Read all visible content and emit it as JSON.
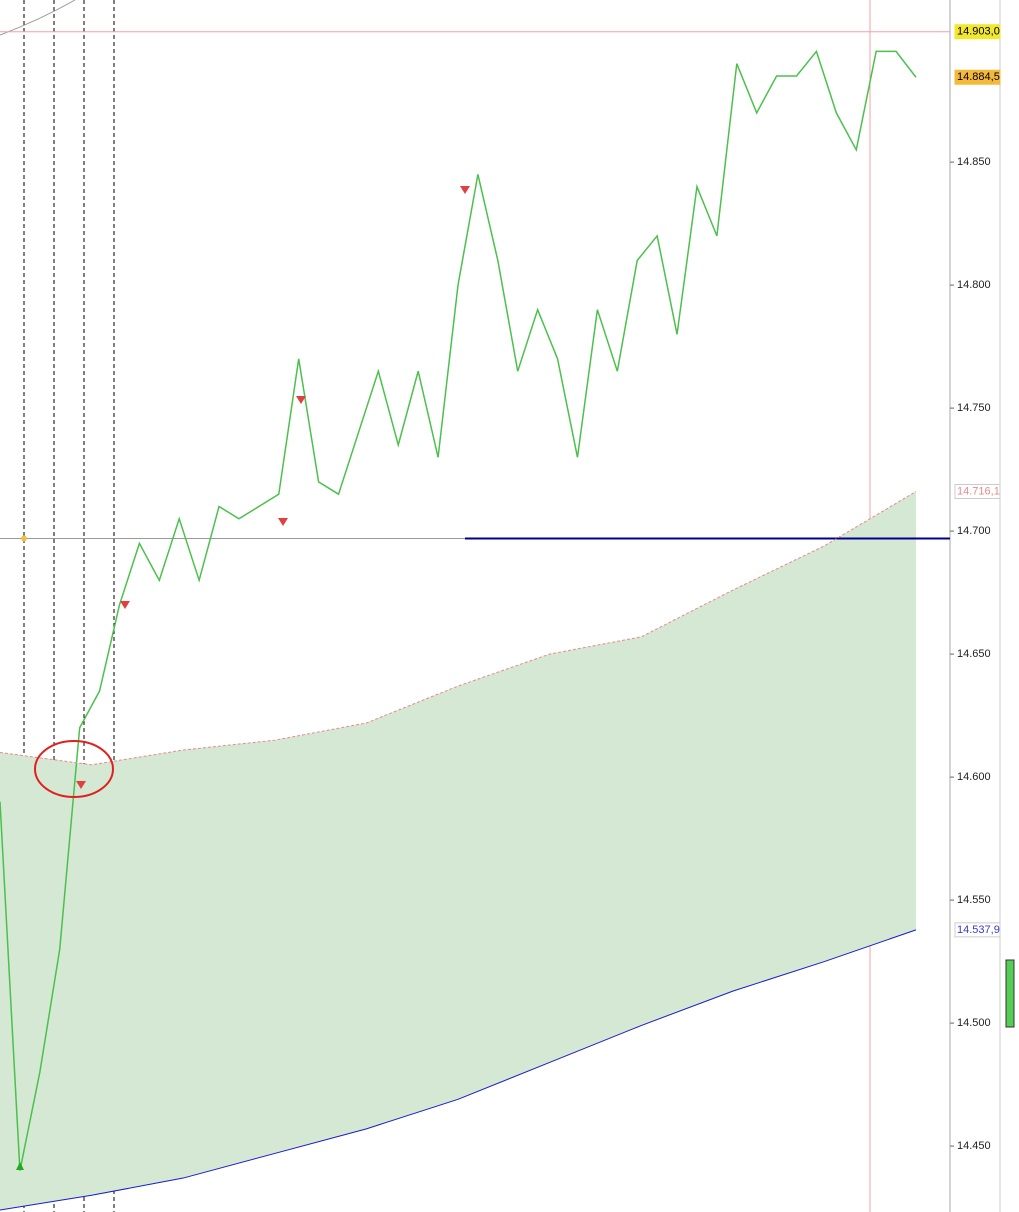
{
  "chart_data": {
    "type": "line",
    "ylim": [
      14.4232,
      14.9159
    ],
    "yticks": [
      {
        "value": 14.45,
        "label": "14.450"
      },
      {
        "value": 14.5,
        "label": "14.500"
      },
      {
        "value": 14.55,
        "label": "14.550"
      },
      {
        "value": 14.6,
        "label": "14.600"
      },
      {
        "value": 14.65,
        "label": "14.650"
      },
      {
        "value": 14.7,
        "label": "14.700"
      },
      {
        "value": 14.75,
        "label": "14.750"
      },
      {
        "value": 14.8,
        "label": "14.800"
      },
      {
        "value": 14.85,
        "label": "14.850"
      }
    ],
    "series": [
      {
        "color": "#4cc04c",
        "values": [
          14.59,
          14.44,
          14.48,
          14.53,
          14.62,
          14.635,
          14.67,
          14.695,
          14.68,
          14.705,
          14.68,
          14.71,
          14.705,
          14.71,
          14.715,
          14.77,
          14.72,
          14.715,
          14.74,
          14.765,
          14.735,
          14.765,
          14.73,
          14.8,
          14.845,
          14.81,
          14.765,
          14.79,
          14.77,
          14.73,
          14.79,
          14.765,
          14.81,
          14.82,
          14.78,
          14.84,
          14.82,
          14.89,
          14.87,
          14.885,
          14.885,
          14.895,
          14.87,
          14.855,
          14.895,
          14.895,
          14.8845
        ]
      },
      {
        "color": "#e88a8a",
        "values": [
          14.61,
          14.605,
          14.611,
          14.615,
          14.622,
          14.637,
          14.65,
          14.657,
          14.676,
          14.694,
          14.7161
        ]
      },
      {
        "color": "#1a1acc",
        "values": [
          14.424,
          14.43,
          14.437,
          14.447,
          14.457,
          14.469,
          14.484,
          14.499,
          14.513,
          14.525,
          14.5379
        ]
      }
    ],
    "band_color": "#d4e8d4",
    "level": 14.697,
    "level_color": "#00008b",
    "price_labels": [
      {
        "value": 14.903,
        "label": "14.903,0",
        "color": "#000",
        "background": "#f2e62e"
      },
      {
        "value": 14.8845,
        "label": "14.884,5",
        "color": "#000",
        "background": "#f5b93a"
      },
      {
        "value": 14.7161,
        "label": "14.716,1",
        "color": "#e88a8a",
        "background": "#ffffff"
      },
      {
        "value": 14.5379,
        "label": "14.537,9",
        "color": "#3a3acc",
        "background": "#ffffff"
      }
    ]
  }
}
